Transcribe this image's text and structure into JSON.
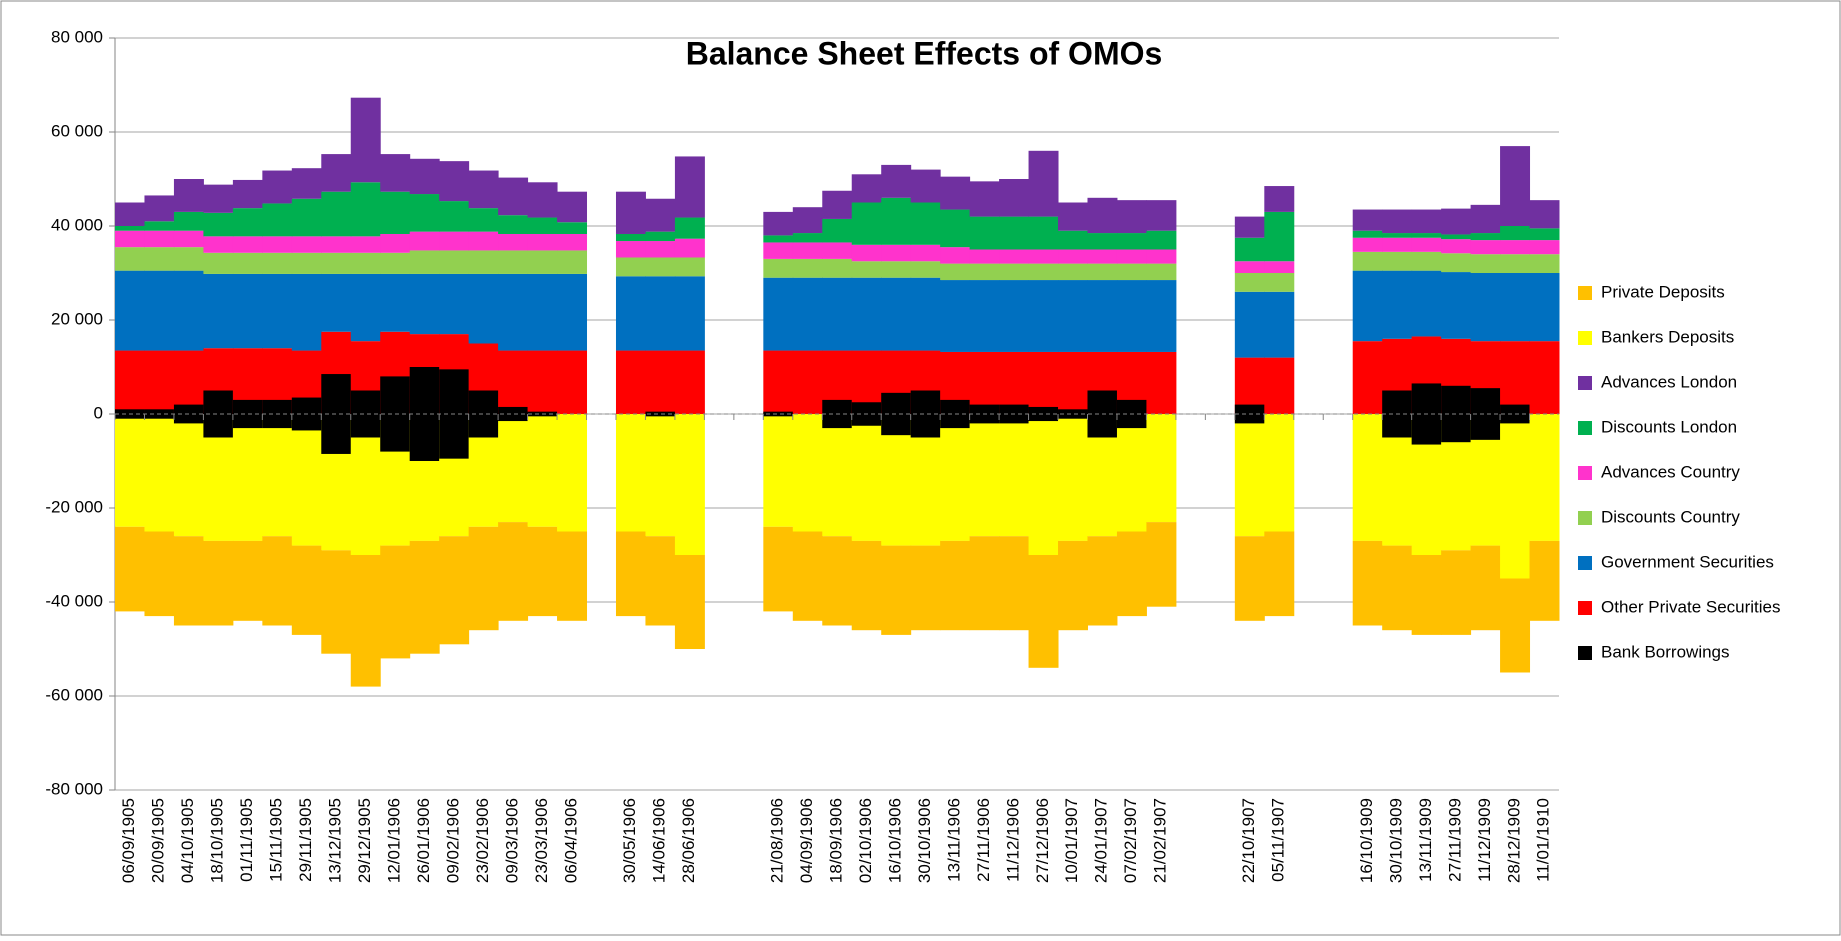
{
  "chart_data": {
    "type": "stacked-bar",
    "title": "Balance Sheet Effects of OMOs",
    "categories": [
      "06/09/1905",
      "20/09/1905",
      "04/10/1905",
      "18/10/1905",
      "01/11/1905",
      "15/11/1905",
      "29/11/1905",
      "13/12/1905",
      "29/12/1905",
      "12/01/1906",
      "26/01/1906",
      "09/02/1906",
      "23/02/1906",
      "09/03/1906",
      "23/03/1906",
      "06/04/1906",
      null,
      "30/05/1906",
      "14/06/1906",
      "28/06/1906",
      null,
      null,
      "21/08/1906",
      "04/09/1906",
      "18/09/1906",
      "02/10/1906",
      "16/10/1906",
      "30/10/1906",
      "13/11/1906",
      "27/11/1906",
      "11/12/1906",
      "27/12/1906",
      "10/01/1907",
      "24/01/1907",
      "07/02/1907",
      "21/02/1907",
      null,
      null,
      "22/10/1907",
      "05/11/1907",
      null,
      null,
      "16/10/1909",
      "30/10/1909",
      "13/11/1909",
      "27/11/1909",
      "11/12/1909",
      "28/12/1909",
      "11/01/1910"
    ],
    "ylim": [
      -80000,
      80000
    ],
    "yticks": [
      {
        "value": -80000,
        "label": "-80 000"
      },
      {
        "value": -60000,
        "label": "-60 000"
      },
      {
        "value": -40000,
        "label": "-40 000"
      },
      {
        "value": -20000,
        "label": "-20 000"
      },
      0,
      {
        "value": 20000,
        "label": "20 000"
      },
      {
        "value": 40000,
        "label": "40 000"
      },
      {
        "value": 60000,
        "label": "60 000"
      },
      {
        "value": 80000,
        "label": "80 000"
      }
    ],
    "grid": true,
    "legend": "right",
    "series": [
      {
        "name": "Private Deposits",
        "color": "#ffc000",
        "values": [
          -18000,
          -18000,
          -19000,
          -18000,
          -17000,
          -19000,
          -19000,
          -22000,
          -28000,
          -24000,
          -24000,
          -23000,
          -22000,
          -21000,
          -19000,
          -19000,
          null,
          -18000,
          -19000,
          -20000,
          null,
          null,
          -18000,
          -19000,
          -19000,
          -19000,
          -19000,
          -18000,
          -19000,
          -20000,
          -20000,
          -24000,
          -19000,
          -19000,
          -18000,
          -18000,
          null,
          null,
          -18000,
          -18000,
          null,
          null,
          -18000,
          -18000,
          -17000,
          -18000,
          -18000,
          -20000,
          -17000
        ]
      },
      {
        "name": "Bankers Deposits",
        "color": "#ffff00",
        "values": [
          -24000,
          -25000,
          -26000,
          -27000,
          -27000,
          -26000,
          -28000,
          -29000,
          -30000,
          -28000,
          -27000,
          -26000,
          -24000,
          -23000,
          -24000,
          -25000,
          null,
          -25000,
          -26000,
          -30000,
          null,
          null,
          -24000,
          -25000,
          -26000,
          -27000,
          -28000,
          -28000,
          -27000,
          -26000,
          -26000,
          -30000,
          -27000,
          -26000,
          -25000,
          -23000,
          null,
          null,
          -26000,
          -25000,
          null,
          null,
          -27000,
          -28000,
          -30000,
          -29000,
          -28000,
          -35000,
          -27000
        ]
      },
      {
        "name": "Advances London",
        "color": "#7030a0",
        "values": [
          5000,
          5500,
          7000,
          6000,
          6000,
          7000,
          6500,
          8000,
          18000,
          8000,
          7500,
          8500,
          8000,
          8000,
          7500,
          6500,
          null,
          9000,
          7000,
          13000,
          null,
          null,
          5000,
          5500,
          6000,
          6000,
          7000,
          7000,
          7000,
          7500,
          8000,
          14000,
          6000,
          7500,
          7000,
          6500,
          null,
          null,
          4500,
          5500,
          null,
          null,
          4500,
          5000,
          5000,
          5500,
          6000,
          17000,
          6000
        ]
      },
      {
        "name": "Discounts London",
        "color": "#00b050",
        "values": [
          1000,
          2000,
          4000,
          5000,
          6000,
          7000,
          8000,
          9500,
          11500,
          9000,
          8000,
          6500,
          5000,
          4000,
          3500,
          2500,
          null,
          1500,
          2000,
          4500,
          null,
          null,
          1500,
          2000,
          5000,
          9000,
          10000,
          9000,
          8000,
          7000,
          7000,
          7000,
          4000,
          3500,
          3500,
          4000,
          null,
          null,
          5000,
          10500,
          null,
          null,
          1500,
          1000,
          1000,
          1000,
          1500,
          3000,
          2500
        ]
      },
      {
        "name": "Advances Country",
        "color": "#ff33cc",
        "values": [
          3500,
          3500,
          3500,
          3500,
          3500,
          3500,
          3500,
          3500,
          3500,
          4000,
          4000,
          4000,
          4000,
          3500,
          3500,
          3500,
          null,
          3500,
          3500,
          4000,
          null,
          null,
          3500,
          3500,
          3500,
          3500,
          3500,
          3500,
          3500,
          3000,
          3000,
          3000,
          3000,
          3000,
          3000,
          3000,
          null,
          null,
          2500,
          2500,
          null,
          null,
          3000,
          3000,
          3000,
          3000,
          3000,
          3000,
          3000
        ]
      },
      {
        "name": "Discounts Country",
        "color": "#92d050",
        "values": [
          5000,
          5000,
          5000,
          4500,
          4500,
          4500,
          4500,
          4500,
          4500,
          4500,
          5000,
          5000,
          5000,
          5000,
          5000,
          5000,
          null,
          4000,
          4000,
          4000,
          null,
          null,
          4000,
          4000,
          4000,
          3500,
          3500,
          3500,
          3500,
          3500,
          3500,
          3500,
          3500,
          3500,
          3500,
          3500,
          null,
          null,
          4000,
          4000,
          null,
          null,
          4000,
          4000,
          4000,
          4000,
          4000,
          4000,
          4000
        ]
      },
      {
        "name": "Government Securities",
        "color": "#0070c0",
        "values": [
          17000,
          17000,
          17000,
          15800,
          15800,
          15800,
          16300,
          12300,
          14300,
          12300,
          12800,
          12800,
          14800,
          16300,
          16300,
          16300,
          null,
          15800,
          15800,
          15800,
          null,
          null,
          15500,
          15500,
          15500,
          15500,
          15500,
          15500,
          15300,
          15300,
          15300,
          15300,
          15300,
          15300,
          15300,
          15300,
          null,
          null,
          14000,
          14000,
          null,
          null,
          15000,
          14500,
          14000,
          14200,
          14500,
          14500,
          14500
        ]
      },
      {
        "name": "Other Private Securities",
        "color": "#ff0000",
        "values": [
          13500,
          13500,
          13500,
          14000,
          14000,
          14000,
          13500,
          17500,
          15500,
          17500,
          17000,
          17000,
          15000,
          13500,
          13500,
          13500,
          null,
          13500,
          13500,
          13500,
          null,
          null,
          13500,
          13500,
          13500,
          13500,
          13500,
          13500,
          13200,
          13200,
          13200,
          13200,
          13200,
          13200,
          13200,
          13200,
          null,
          null,
          12000,
          12000,
          null,
          null,
          15500,
          16000,
          16500,
          16000,
          15500,
          15500,
          15500
        ]
      },
      {
        "name": "Bank Borrowings",
        "color": "#000000",
        "stacked": false,
        "values": [
          1000,
          1000,
          2000,
          5000,
          3000,
          3000,
          3500,
          8500,
          5000,
          8000,
          10000,
          9500,
          5000,
          1500,
          500,
          0,
          null,
          0,
          500,
          0,
          null,
          null,
          500,
          0,
          3000,
          2500,
          4500,
          5000,
          3000,
          2000,
          2000,
          1500,
          1000,
          5000,
          3000,
          0,
          null,
          null,
          2000,
          0,
          null,
          null,
          0,
          5000,
          6500,
          6000,
          5500,
          2000,
          0
        ]
      }
    ]
  }
}
